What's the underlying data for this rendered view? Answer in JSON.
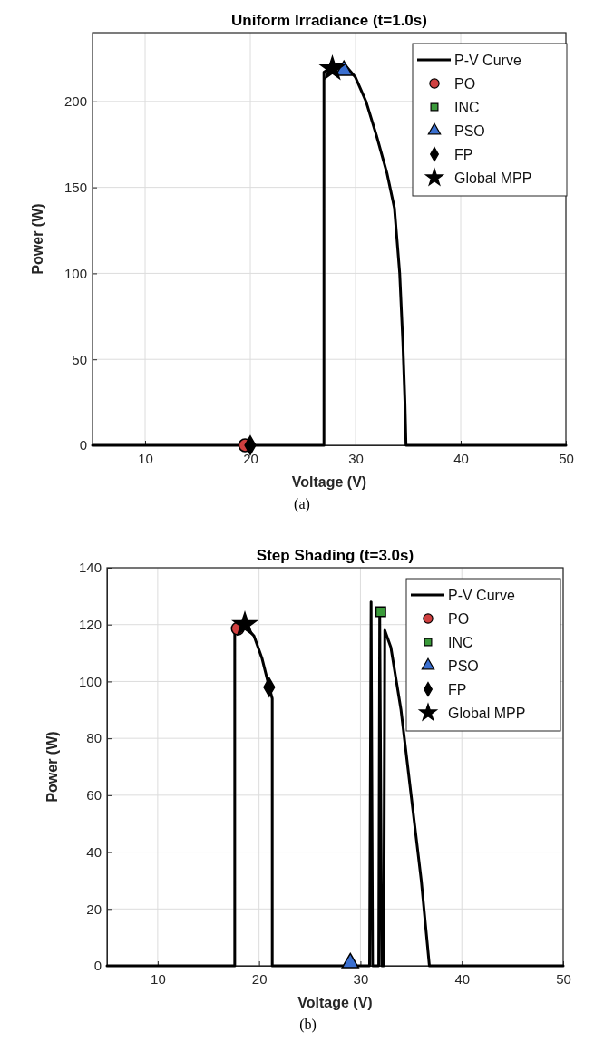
{
  "chart_data": [
    {
      "type": "line",
      "title": "Uniform Irradiance (t=1.0s)",
      "xlabel": "Voltage (V)",
      "ylabel": "Power (W)",
      "xlim": [
        5,
        50
      ],
      "xticks": [
        10,
        20,
        30,
        40,
        50
      ],
      "ylim": [
        0,
        240
      ],
      "yticks": [
        0,
        50,
        100,
        150,
        200
      ],
      "grid": true,
      "legend": "top right",
      "annotations": [
        "(a)"
      ],
      "series": [
        {
          "name": "P-V Curve",
          "color": "#000000",
          "x": [
            5,
            27,
            27,
            27.5,
            28,
            28.9,
            30,
            31,
            32,
            33,
            33.7,
            34.2,
            34.5,
            34.7,
            34.8,
            50
          ],
          "values": [
            0,
            0,
            217,
            219,
            221,
            222,
            214,
            200,
            180,
            158,
            138,
            100,
            60,
            25,
            0,
            0
          ]
        },
        {
          "name": "PO",
          "type": "scatter",
          "marker": "circle",
          "color": "#d04040",
          "x": [
            19.5
          ],
          "values": [
            0
          ]
        },
        {
          "name": "INC",
          "type": "scatter",
          "marker": "square",
          "color": "#3a9a3a",
          "x": [
            null
          ],
          "values": [
            null
          ]
        },
        {
          "name": "PSO",
          "type": "scatter",
          "marker": "triangle",
          "color": "#3a6fd0",
          "x": [
            28.9
          ],
          "values": [
            218
          ]
        },
        {
          "name": "FP",
          "type": "scatter",
          "marker": "diamond",
          "color": "#000000",
          "x": [
            20
          ],
          "values": [
            0
          ]
        },
        {
          "name": "Global MPP",
          "type": "scatter",
          "marker": "star",
          "color": "#000000",
          "x": [
            27.8
          ],
          "values": [
            219
          ]
        }
      ]
    },
    {
      "type": "line",
      "title": "Step Shading (t=3.0s)",
      "xlabel": "Voltage (V)",
      "ylabel": "Power (W)",
      "xlim": [
        5,
        50
      ],
      "xticks": [
        10,
        20,
        30,
        40,
        50
      ],
      "ylim": [
        0,
        140
      ],
      "yticks": [
        0,
        20,
        40,
        60,
        80,
        100,
        120,
        140
      ],
      "grid": true,
      "legend": "top right",
      "annotations": [
        "(b)"
      ],
      "series": [
        {
          "name": "P-V Curve",
          "color": "#000000",
          "x": [
            5,
            17.6,
            17.6,
            18.5,
            19.5,
            20.3,
            21,
            21.3,
            21.3,
            30.9,
            31.05,
            31.2,
            31.8,
            31.9,
            32.1,
            32.3,
            32.4,
            33,
            34,
            35,
            36,
            36.8,
            50
          ],
          "values": [
            0,
            0,
            119,
            120,
            116,
            108,
            98,
            94,
            0,
            0,
            128,
            0,
            0,
            125,
            0,
            0,
            118,
            112,
            90,
            60,
            30,
            0,
            0
          ]
        },
        {
          "name": "PO",
          "type": "scatter",
          "marker": "circle",
          "color": "#d04040",
          "x": [
            17.9
          ],
          "values": [
            118.6
          ]
        },
        {
          "name": "INC",
          "type": "scatter",
          "marker": "square",
          "color": "#3a9a3a",
          "x": [
            32
          ],
          "values": [
            124.5
          ]
        },
        {
          "name": "PSO",
          "type": "scatter",
          "marker": "triangle",
          "color": "#3a6fd0",
          "x": [
            29
          ],
          "values": [
            1
          ]
        },
        {
          "name": "FP",
          "type": "scatter",
          "marker": "diamond",
          "color": "#000000",
          "x": [
            21
          ],
          "values": [
            98
          ]
        },
        {
          "name": "Global MPP",
          "type": "scatter",
          "marker": "star",
          "color": "#000000",
          "x": [
            18.6
          ],
          "values": [
            120
          ]
        }
      ]
    }
  ]
}
